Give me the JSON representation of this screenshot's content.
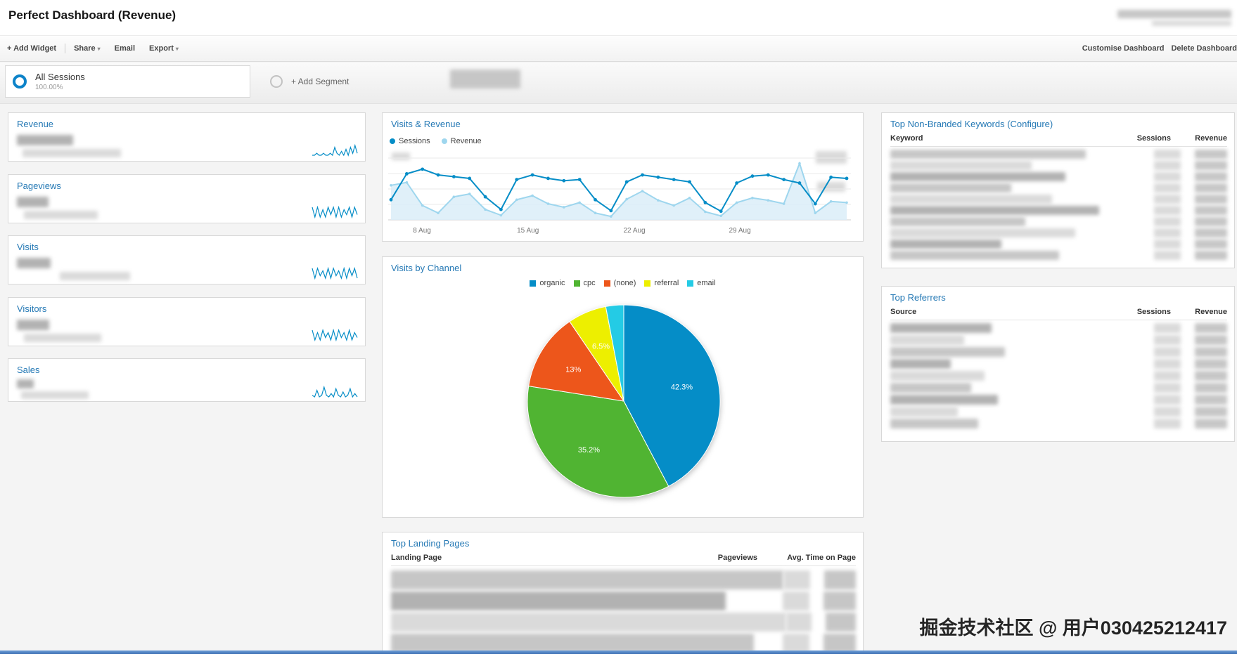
{
  "icons": {
    "caret_down": "▾"
  },
  "header": {
    "title": "Perfect Dashboard (Revenue)"
  },
  "toolbar": {
    "add_widget": "+ Add Widget",
    "share": "Share",
    "email": "Email",
    "export": "Export",
    "customise": "Customise Dashboard",
    "delete_dashboard": "Delete Dashboard"
  },
  "segment_bar": {
    "all_sessions_label": "All Sessions",
    "all_sessions_percent": "100.00%",
    "add_segment_label": "+ Add Segment"
  },
  "left_widgets": [
    {
      "title": "Revenue",
      "spark": [
        2,
        2,
        3,
        2,
        2,
        3,
        2,
        2,
        3,
        2,
        6,
        3,
        2,
        4,
        2,
        5,
        2,
        6,
        3,
        7,
        3
      ]
    },
    {
      "title": "Pageviews",
      "spark": [
        6,
        2,
        6,
        2,
        5,
        2,
        6,
        3,
        6,
        2,
        6,
        2,
        5,
        3,
        6,
        2,
        6,
        3
      ]
    },
    {
      "title": "Visits",
      "spark": [
        6,
        2,
        6,
        3,
        5,
        2,
        6,
        2,
        6,
        3,
        5,
        2,
        6,
        2,
        6,
        3,
        6,
        2
      ]
    },
    {
      "title": "Visitors",
      "spark": [
        6,
        2,
        5,
        2,
        6,
        3,
        5,
        2,
        6,
        2,
        6,
        3,
        5,
        2,
        6,
        2,
        5,
        3
      ]
    },
    {
      "title": "Sales",
      "spark": [
        2,
        1,
        5,
        1,
        2,
        7,
        2,
        1,
        3,
        1,
        6,
        2,
        1,
        4,
        1,
        2,
        6,
        1,
        3,
        1
      ]
    }
  ],
  "widgets": {
    "visits_revenue": {
      "title": "Visits & Revenue"
    },
    "visits_by_channel": {
      "title": "Visits by Channel"
    },
    "landing_pages": {
      "title": "Top Landing Pages",
      "columns": [
        "Landing Page",
        "Pageviews",
        "Avg. Time on Page"
      ]
    },
    "keywords": {
      "title": "Top Non-Branded Keywords (Configure)",
      "columns": [
        "Keyword",
        "Sessions",
        "Revenue"
      ]
    },
    "referrers": {
      "title": "Top Referrers",
      "columns": [
        "Source",
        "Sessions",
        "Revenue"
      ]
    }
  },
  "chart_data": [
    {
      "type": "line",
      "title": "Visits & Revenue",
      "x_ticks": [
        "8 Aug",
        "15 Aug",
        "22 Aug",
        "29 Aug"
      ],
      "x_tick_positions": [
        0.073,
        0.302,
        0.532,
        0.76
      ],
      "legend_position": "top-left",
      "grid": true,
      "series": [
        {
          "name": "Sessions",
          "color": "#058dc7",
          "values": [
            35,
            80,
            88,
            78,
            75,
            72,
            40,
            18,
            70,
            78,
            72,
            68,
            70,
            35,
            16,
            66,
            78,
            74,
            70,
            66,
            30,
            15,
            64,
            76,
            78,
            70,
            64,
            28,
            74,
            72
          ]
        },
        {
          "name": "Revenue",
          "color": "#9ed6ee",
          "values": [
            60,
            65,
            25,
            12,
            40,
            45,
            18,
            8,
            35,
            42,
            28,
            22,
            30,
            12,
            6,
            36,
            50,
            34,
            25,
            38,
            14,
            7,
            30,
            38,
            34,
            28,
            98,
            12,
            32,
            30
          ]
        }
      ],
      "note": "Y-axis tick values are redacted (blurred) in the source; series values are relative 0-100 estimates."
    },
    {
      "type": "pie",
      "title": "Visits by Channel",
      "legend_position": "top-center",
      "slices": [
        {
          "label": "organic",
          "value": 42.3,
          "display": "42.3%",
          "color": "#058DC7"
        },
        {
          "label": "cpc",
          "value": 35.2,
          "display": "35.2%",
          "color": "#50B432"
        },
        {
          "label": "(none)",
          "value": 13.0,
          "display": "13%",
          "color": "#ED561B"
        },
        {
          "label": "referral",
          "value": 6.5,
          "display": "6.5%",
          "color": "#EDEF00"
        },
        {
          "label": "email",
          "value": 3.0,
          "display": "",
          "color": "#24CBE5"
        }
      ]
    }
  ],
  "watermark": "掘金技术社区 @ 用户030425212417"
}
